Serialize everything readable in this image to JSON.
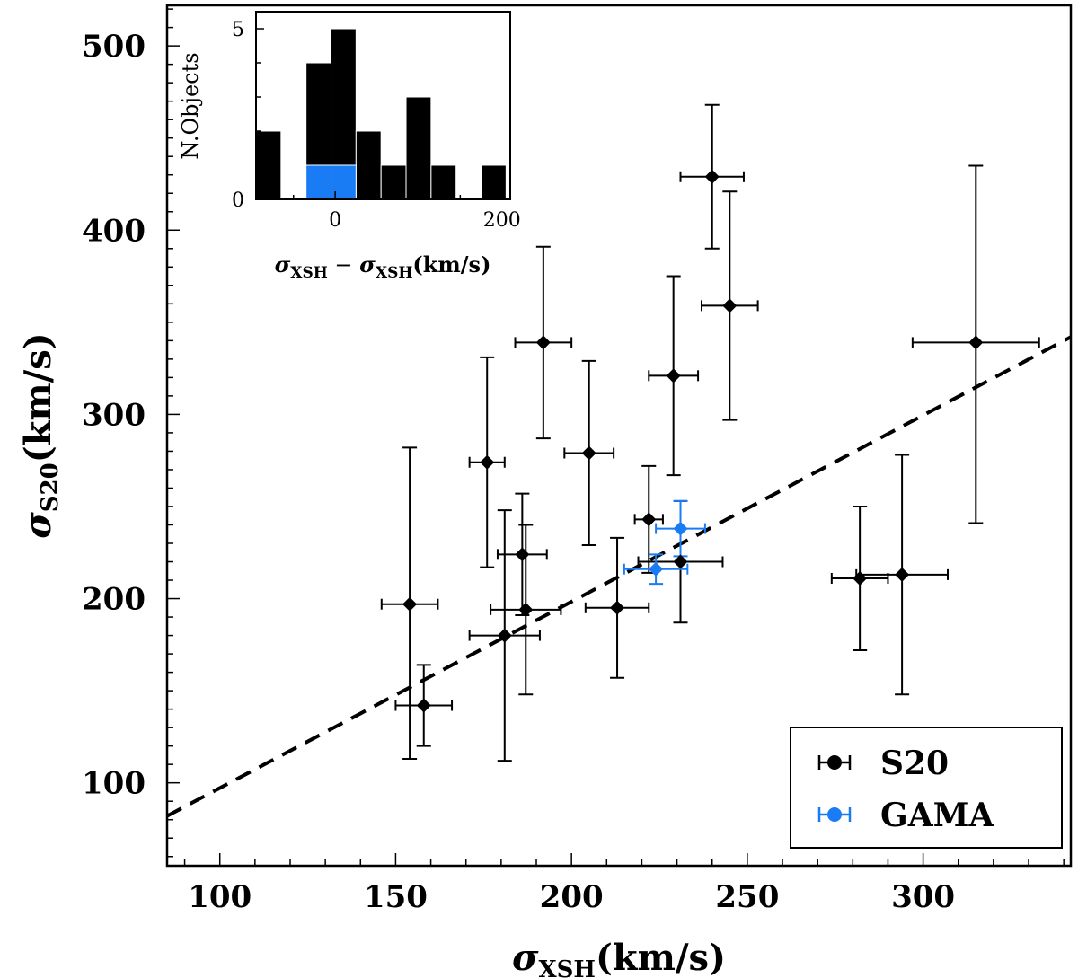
{
  "chart_data": {
    "type": "scatter",
    "xlabel": "σ_XSH (km/s)",
    "xlabel_main": "σ",
    "xlabel_sub": "XSH",
    "xlabel_unit": "(km/s)",
    "ylabel": "σ_S20 (km/s)",
    "ylabel_main": "σ",
    "ylabel_sub": "S20",
    "ylabel_unit": "(km/s)",
    "xlim": [
      85,
      342
    ],
    "ylim": [
      55,
      522
    ],
    "xticks": [
      100,
      150,
      200,
      250,
      300
    ],
    "xtick_labels": [
      "100",
      "150",
      "200",
      "250",
      "300"
    ],
    "yticks": [
      100,
      200,
      300,
      400,
      500
    ],
    "ytick_labels": [
      "100",
      "200",
      "300",
      "400",
      "500"
    ],
    "grid": false,
    "legend_position": "bottom-right",
    "reference_line": {
      "style": "dashed",
      "points": [
        [
          85,
          82
        ],
        [
          342,
          342
        ]
      ]
    },
    "series": [
      {
        "name": "S20",
        "color": "#000000",
        "points": [
          {
            "x": 154,
            "y": 197,
            "xerr": 8,
            "yerr_low": 84,
            "yerr_high": 85
          },
          {
            "x": 158,
            "y": 142,
            "xerr": 8,
            "yerr_low": 22,
            "yerr_high": 22
          },
          {
            "x": 176,
            "y": 274,
            "xerr": 5,
            "yerr_low": 57,
            "yerr_high": 57
          },
          {
            "x": 181,
            "y": 180,
            "xerr": 10,
            "yerr_low": 68,
            "yerr_high": 68
          },
          {
            "x": 186,
            "y": 224,
            "xerr": 7,
            "yerr_low": 33,
            "yerr_high": 33
          },
          {
            "x": 187,
            "y": 194,
            "xerr": 10,
            "yerr_low": 46,
            "yerr_high": 46
          },
          {
            "x": 192,
            "y": 339,
            "xerr": 8,
            "yerr_low": 52,
            "yerr_high": 52
          },
          {
            "x": 205,
            "y": 279,
            "xerr": 7,
            "yerr_low": 50,
            "yerr_high": 50
          },
          {
            "x": 213,
            "y": 195,
            "xerr": 9,
            "yerr_low": 38,
            "yerr_high": 38
          },
          {
            "x": 222,
            "y": 243,
            "xerr": 4,
            "yerr_low": 29,
            "yerr_high": 29
          },
          {
            "x": 229,
            "y": 321,
            "xerr": 7,
            "yerr_low": 54,
            "yerr_high": 54
          },
          {
            "x": 231,
            "y": 220,
            "xerr": 12,
            "yerr_low": 33,
            "yerr_high": 33
          },
          {
            "x": 240,
            "y": 429,
            "xerr": 9,
            "yerr_low": 39,
            "yerr_high": 39
          },
          {
            "x": 245,
            "y": 359,
            "xerr": 8,
            "yerr_low": 62,
            "yerr_high": 62
          },
          {
            "x": 282,
            "y": 211,
            "xerr": 8,
            "yerr_low": 39,
            "yerr_high": 39
          },
          {
            "x": 294,
            "y": 213,
            "xerr": 13,
            "yerr_low": 65,
            "yerr_high": 65
          },
          {
            "x": 315,
            "y": 339,
            "xerr": 18,
            "yerr_low": 98,
            "yerr_high": 96
          }
        ]
      },
      {
        "name": "GAMA",
        "color": "#1a7cf5",
        "points": [
          {
            "x": 224,
            "y": 216,
            "xerr": 9,
            "yerr_low": 8,
            "yerr_high": 8
          },
          {
            "x": 231,
            "y": 238,
            "xerr": 7,
            "yerr_low": 15,
            "yerr_high": 15
          }
        ]
      }
    ],
    "inset": {
      "type": "histogram",
      "xlabel": "σ_XSH − σ_XSH (km/s)",
      "xlabel_main": "σ",
      "xlabel_sub": "XSH",
      "xlabel_minus": " − ",
      "xlabel_unit": "(km/s)",
      "ylabel": "N.Objects",
      "xlim": [
        -95,
        210
      ],
      "ylim": [
        0,
        5.5
      ],
      "xticks": [
        0,
        200
      ],
      "xtick_labels": [
        "0",
        "200"
      ],
      "yticks": [
        0,
        5
      ],
      "ytick_labels": [
        "0",
        "5"
      ],
      "bins": [
        {
          "x0": -95,
          "x1": -65,
          "count": 2
        },
        {
          "x0": -35,
          "x1": -5,
          "count": 4
        },
        {
          "x0": -5,
          "x1": 25,
          "count": 5
        },
        {
          "x0": 25,
          "x1": 55,
          "count": 2
        },
        {
          "x0": 55,
          "x1": 85,
          "count": 1
        },
        {
          "x0": 85,
          "x1": 115,
          "count": 3
        },
        {
          "x0": 115,
          "x1": 145,
          "count": 1
        },
        {
          "x0": 175,
          "x1": 205,
          "count": 1
        }
      ],
      "highlight_bins": [
        {
          "x0": -35,
          "x1": -5,
          "count": 1
        },
        {
          "x0": -5,
          "x1": 25,
          "count": 1
        }
      ],
      "bar_color": "#000000",
      "highlight_color": "#1a7cf5"
    }
  }
}
